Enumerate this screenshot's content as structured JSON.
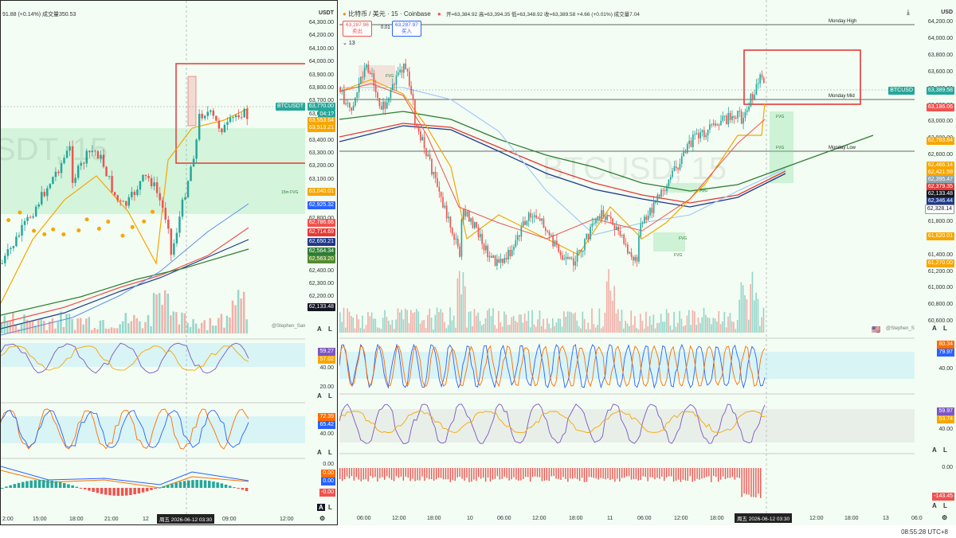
{
  "left_chart": {
    "header": "91.88 (+0.14%)  成交量350.53",
    "currency": "USDT",
    "watermark": "SDT, 15",
    "price_ticks": [
      "64,300.00",
      "64,200.00",
      "64,100.00",
      "64,000.00",
      "63,900.00",
      "63,800.00",
      "63,700.00",
      "63,600.00",
      "63,500.00",
      "63,400.00",
      "63,300.00",
      "63,200.00",
      "63,100.00",
      "63,000.00",
      "62,900.00",
      "62,800.00",
      "62,700.00",
      "62,600.00",
      "62,500.00",
      "62,400.00",
      "62,300.00",
      "62,200.00"
    ],
    "symbol_tag": "BTCUSDT",
    "price_tags": [
      {
        "text": "63,7?0.00",
        "color": "#26a69a"
      },
      {
        "text": "04:1?",
        "color": "#26a69a"
      },
      {
        "text": "63,553.64",
        "color": "#f7a600"
      },
      {
        "text": "63,513.21",
        "color": "#f7a600"
      },
      {
        "text": "63,040.01",
        "color": "#f7a600"
      },
      {
        "text": "62,925.32",
        "color": "#2962ff"
      },
      {
        "text": "62,786.66",
        "color": "#ef5350"
      },
      {
        "text": "62,714.69",
        "color": "#e53935"
      },
      {
        "text": "62,650.21",
        "color": "#1e3a8a"
      },
      {
        "text": "62,564.34",
        "color": "#2e7d32"
      },
      {
        "text": "62,563.20",
        "color": "#558b2f"
      },
      {
        "text": "62,133.48",
        "color": "#131722"
      }
    ],
    "fvg_labels": [
      "FVG",
      "15m FVG"
    ],
    "author": "@Stephen_Sam_",
    "rsi_values": [
      {
        "text": "59.27",
        "color": "#7e57c2"
      },
      {
        "text": "57.02",
        "color": "#f7a600"
      }
    ],
    "rsi_ticks": [
      "40.00",
      "20.00"
    ],
    "stoch_values": [
      {
        "text": "72.39",
        "color": "#ff6d00"
      },
      {
        "text": "65.42",
        "color": "#2962ff"
      }
    ],
    "stoch_ticks": [
      "40.00"
    ],
    "macd_values": [
      {
        "text": "0.00",
        "color": "#ff6d00"
      },
      {
        "text": "0.00",
        "color": "#2962ff"
      },
      {
        "text": "-0.00",
        "color": "#ef5350"
      }
    ],
    "macd_ticks": [
      "0.00"
    ],
    "x_labels": [
      "2:00",
      "15:00",
      "18:00",
      "21:00",
      "12",
      "09:00",
      "12:00"
    ],
    "x_badge": "周五 2026-06-12  03:30",
    "ctrl_a": "A",
    "ctrl_l": "L"
  },
  "right_chart": {
    "title": "比特币 / 美元 · 15 · Coinbase",
    "ohlc": "开=63,384.92 高=63,394.35 低=63,348.92 收=63,389.58 +4.66 (+0.01%) 成交量7.04",
    "sell_price": "63,287.96",
    "sell_label": "卖出",
    "spread": "0.01",
    "buy_price": "63,287.97",
    "buy_label": "买入",
    "indicator_count": "13",
    "currency": "USD",
    "watermark": "BTCUSD, 15",
    "price_ticks": [
      "64,200.00",
      "64,000.00",
      "63,800.00",
      "63,600.00",
      "63,400.00",
      "63,200.00",
      "63,000.00",
      "62,800.00",
      "62,600.00",
      "62,400.00",
      "62,200.00",
      "62,000.00",
      "61,800.00",
      "61,600.00",
      "61,400.00",
      "61,200.00",
      "61,000.00",
      "60,800.00",
      "60,600.00"
    ],
    "symbol_tag": "BTCUSD",
    "symbol_price": "63,389.58",
    "price_tags": [
      {
        "text": "63,186.06",
        "color": "#ef5350"
      },
      {
        "text": "62,783.84",
        "color": "#f7a600"
      },
      {
        "text": "62,466.14",
        "color": "#f7a600"
      },
      {
        "text": "62,421.59",
        "color": "#f7a600"
      },
      {
        "text": "62,395.47",
        "color": "#90a4ae"
      },
      {
        "text": "62,379.35",
        "color": "#e53935"
      },
      {
        "text": "62,133.48",
        "color": "#131722"
      },
      {
        "text": "62,346.44",
        "color": "#1e3a8a"
      },
      {
        "text": "62,328.14",
        "color": "#ffffff"
      },
      {
        "text": "61,620.01",
        "color": "#f7a600"
      },
      {
        "text": "61,270.00",
        "color": "#f7a600"
      }
    ],
    "level_labels": [
      "Monday High",
      "Monday Mid",
      "Monday Low"
    ],
    "fvg_labels": [
      "FVG",
      "FVG",
      "FVG",
      "FVG",
      "FVG",
      "FVG"
    ],
    "author": "@Stephen_Sam_",
    "rsi_values": [
      {
        "text": "80.34",
        "color": "#ff6d00"
      },
      {
        "text": "79.97",
        "color": "#2962ff"
      }
    ],
    "rsi_ticks": [
      "40.00"
    ],
    "stoch_values": [
      {
        "text": "59.97",
        "color": "#7e57c2"
      },
      {
        "text": "53.74",
        "color": "#f7a600"
      }
    ],
    "stoch_ticks": [
      "40.00"
    ],
    "macd_values": [
      {
        "text": "-143.45",
        "color": "#ef5350"
      }
    ],
    "macd_ticks": [
      "0.00"
    ],
    "x_labels": [
      "06:00",
      "12:00",
      "18:00",
      "10",
      "06:00",
      "12:00",
      "18:00",
      "11",
      "06:00",
      "12:00",
      "18:00",
      "12:00",
      "18:00",
      "13",
      "06:0"
    ],
    "x_badge": "周五 2026-06-12  03:30",
    "clock": "08:55:28 UTC+8",
    "ctrl_a": "A",
    "ctrl_l": "L"
  }
}
